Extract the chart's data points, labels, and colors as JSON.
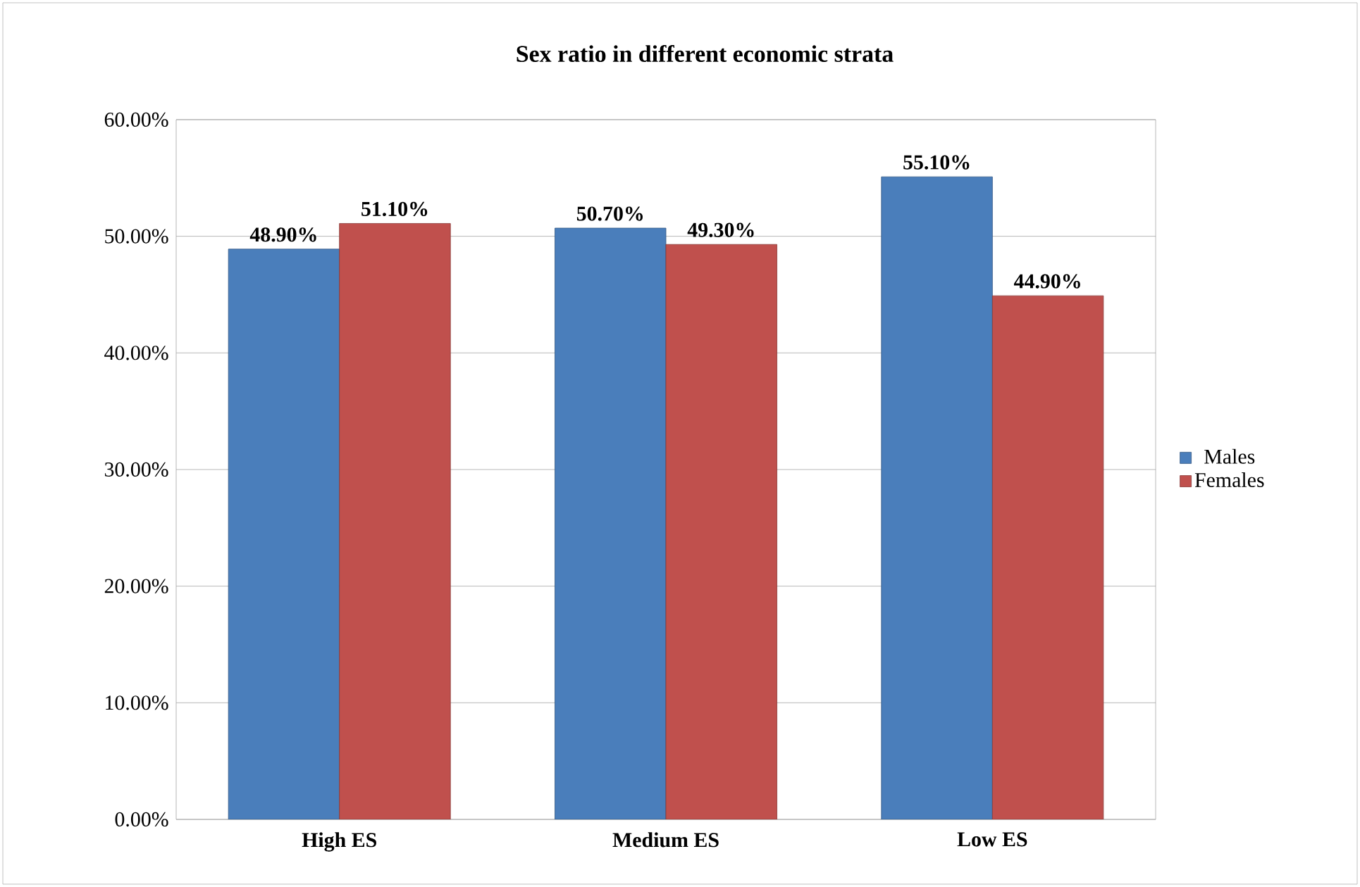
{
  "chart_data": {
    "type": "bar",
    "title": "Sex ratio in different economic strata",
    "categories": [
      "High ES",
      "Medium ES",
      "Low ES"
    ],
    "series": [
      {
        "name": "Males",
        "color": "#4a7ebb",
        "values": [
          48.9,
          50.7,
          55.1
        ],
        "value_labels": [
          "48.90%",
          "50.70%",
          "55.10%"
        ]
      },
      {
        "name": "Females",
        "color": "#c0504d",
        "values": [
          51.1,
          49.3,
          44.9
        ],
        "value_labels": [
          "51.10%",
          "49.30%",
          "44.90%"
        ]
      }
    ],
    "ylim": [
      0,
      60
    ],
    "yticks": [
      {
        "value": 0,
        "label": "0.00%"
      },
      {
        "value": 10,
        "label": "10.00%"
      },
      {
        "value": 20,
        "label": "20.00%"
      },
      {
        "value": 30,
        "label": "30.00%"
      },
      {
        "value": 40,
        "label": "40.00%"
      },
      {
        "value": 50,
        "label": "50.00%"
      },
      {
        "value": 60,
        "label": "60.00%"
      }
    ],
    "grid": "y",
    "legend": "right"
  }
}
